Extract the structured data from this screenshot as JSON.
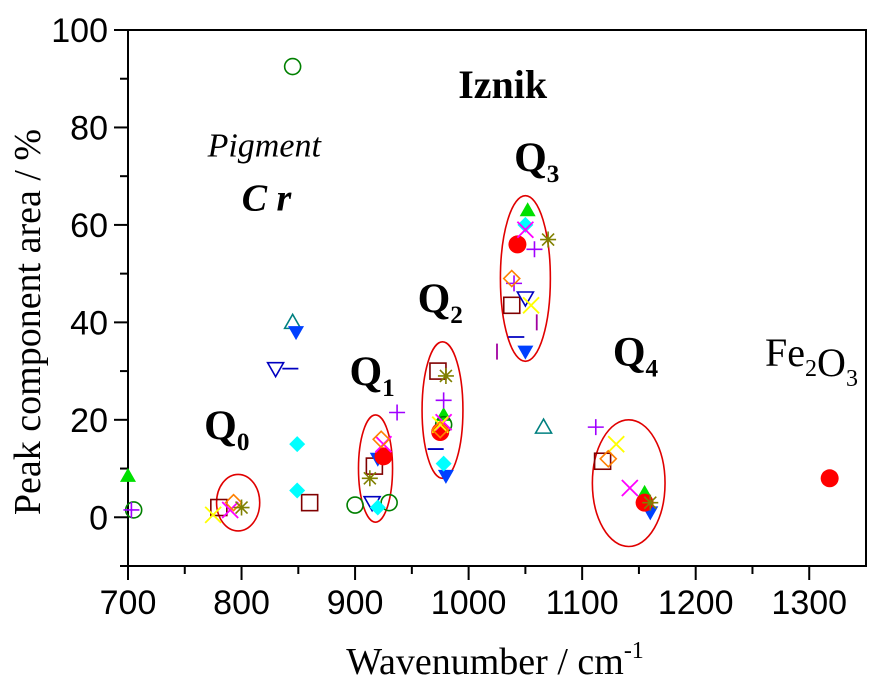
{
  "chart_data": {
    "type": "scatter",
    "title": "",
    "xlabel": "Wavenumber / cm",
    "xlabel_sup": "-1",
    "ylabel": "Peak component area / %",
    "xlim": [
      700,
      1350
    ],
    "ylim": [
      -10,
      100
    ],
    "xticks": [
      700,
      800,
      900,
      1000,
      1100,
      1200,
      1300
    ],
    "yticks": [
      0,
      20,
      40,
      60,
      80,
      100
    ],
    "grid": false,
    "annotations": [
      {
        "id": "iznik",
        "text": "Iznik",
        "x": 1030,
        "y": 86,
        "style": "bold",
        "size": 40
      },
      {
        "id": "pigment",
        "text": "Pigment",
        "x": 820,
        "y": 74,
        "style": "italic",
        "size": 34
      },
      {
        "id": "cr",
        "text": "C r",
        "x": 822,
        "y": 63,
        "style": "bold-italic",
        "size": 38
      },
      {
        "id": "q0",
        "text": "Q",
        "sub": "0",
        "x": 787,
        "y": 16,
        "style": "bold",
        "size": 42
      },
      {
        "id": "q1",
        "text": "Q",
        "sub": "1",
        "x": 915,
        "y": 27,
        "style": "bold",
        "size": 42
      },
      {
        "id": "q2",
        "text": "Q",
        "sub": "2",
        "x": 975,
        "y": 42,
        "style": "bold",
        "size": 42
      },
      {
        "id": "q3",
        "text": "Q",
        "sub": "3",
        "x": 1060,
        "y": 71,
        "style": "bold",
        "size": 42
      },
      {
        "id": "q4",
        "text": "Q",
        "sub": "4",
        "x": 1147,
        "y": 31,
        "style": "bold",
        "size": 42
      },
      {
        "id": "fe2o3",
        "text": "Fe",
        "sub": "2",
        "text2": "O",
        "sub2": "3",
        "x": 1302,
        "y": 31,
        "style": "normal",
        "size": 40
      }
    ],
    "groups": [
      {
        "id": "q0",
        "cx": 797,
        "cy": 3,
        "rx": 19,
        "ry": 5.8
      },
      {
        "id": "q1",
        "cx": 918,
        "cy": 10,
        "rx": 15,
        "ry": 11
      },
      {
        "id": "q2",
        "cx": 977,
        "cy": 22,
        "rx": 18,
        "ry": 14
      },
      {
        "id": "q3",
        "cx": 1050,
        "cy": 49,
        "rx": 22,
        "ry": 17
      },
      {
        "id": "q4",
        "cx": 1141,
        "cy": 7,
        "rx": 32,
        "ry": 13
      }
    ],
    "series": [
      {
        "marker": "tri-up-filled",
        "color": "#00e000",
        "points": [
          [
            700,
            8.5
          ],
          [
            978,
            21
          ],
          [
            1052,
            63
          ],
          [
            1155,
            5
          ]
        ]
      },
      {
        "marker": "circle-open",
        "color": "#008000",
        "points": [
          [
            705,
            1.5
          ],
          [
            845,
            92.5
          ],
          [
            900,
            2.5
          ],
          [
            930,
            3
          ],
          [
            978,
            19
          ]
        ]
      },
      {
        "marker": "plus",
        "color": "#a000ff",
        "points": [
          [
            703,
            1.5
          ],
          [
            937,
            21.5
          ],
          [
            978,
            24
          ],
          [
            1040,
            48
          ],
          [
            1058,
            55
          ],
          [
            1112,
            18.5
          ]
        ]
      },
      {
        "marker": "square-open",
        "color": "#800000",
        "points": [
          [
            780,
            2
          ],
          [
            860,
            3
          ],
          [
            917,
            10.5
          ],
          [
            973,
            30
          ],
          [
            1038,
            43.5
          ],
          [
            1118,
            11.5
          ]
        ]
      },
      {
        "marker": "tri-up-open",
        "color": "#008080",
        "points": [
          [
            845,
            40
          ],
          [
            1066,
            18.5
          ]
        ]
      },
      {
        "marker": "tri-down-filled",
        "color": "#0040ff",
        "points": [
          [
            848,
            38
          ],
          [
            920,
            12
          ],
          [
            980,
            8.5
          ],
          [
            1050,
            34
          ],
          [
            1160,
            1
          ]
        ]
      },
      {
        "marker": "tri-down-open",
        "color": "#0000c0",
        "points": [
          [
            830,
            30.5
          ],
          [
            915,
            3
          ],
          [
            1050,
            45
          ]
        ]
      },
      {
        "marker": "dash",
        "color": "#0000c0",
        "points": [
          [
            843,
            30.5
          ],
          [
            971,
            14
          ],
          [
            1042,
            37
          ]
        ]
      },
      {
        "marker": "vbar",
        "color": "#a000a0",
        "points": [
          [
            1025,
            34
          ],
          [
            1060,
            40
          ]
        ]
      },
      {
        "marker": "diamond-filled",
        "color": "#00ffff",
        "points": [
          [
            849,
            15
          ],
          [
            849,
            5.5
          ],
          [
            920,
            2
          ],
          [
            978,
            11
          ],
          [
            1050,
            60
          ]
        ]
      },
      {
        "marker": "circle-filled",
        "color": "#ff0000",
        "points": [
          [
            925,
            12.5
          ],
          [
            975,
            17.5
          ],
          [
            1043,
            56
          ],
          [
            1155,
            3
          ],
          [
            1318,
            8
          ]
        ]
      },
      {
        "marker": "x",
        "color": "#ff00ff",
        "points": [
          [
            790,
            1.5
          ],
          [
            925,
            15
          ],
          [
            978,
            19.5
          ],
          [
            1050,
            59
          ],
          [
            1142,
            6
          ]
        ]
      },
      {
        "marker": "x",
        "color": "#ffff00",
        "points": [
          [
            775,
            0.5
          ],
          [
            975,
            19
          ],
          [
            1055,
            43.5
          ],
          [
            1130,
            15
          ]
        ]
      },
      {
        "marker": "diamond-open",
        "color": "#ff8000",
        "points": [
          [
            793,
            3
          ],
          [
            923,
            16
          ],
          [
            975,
            18
          ],
          [
            1038,
            49
          ],
          [
            1123,
            12
          ]
        ]
      },
      {
        "marker": "star",
        "color": "#808000",
        "points": [
          [
            800,
            2
          ],
          [
            913,
            8
          ],
          [
            980,
            29
          ],
          [
            1070,
            57
          ],
          [
            1160,
            3
          ]
        ]
      }
    ]
  }
}
